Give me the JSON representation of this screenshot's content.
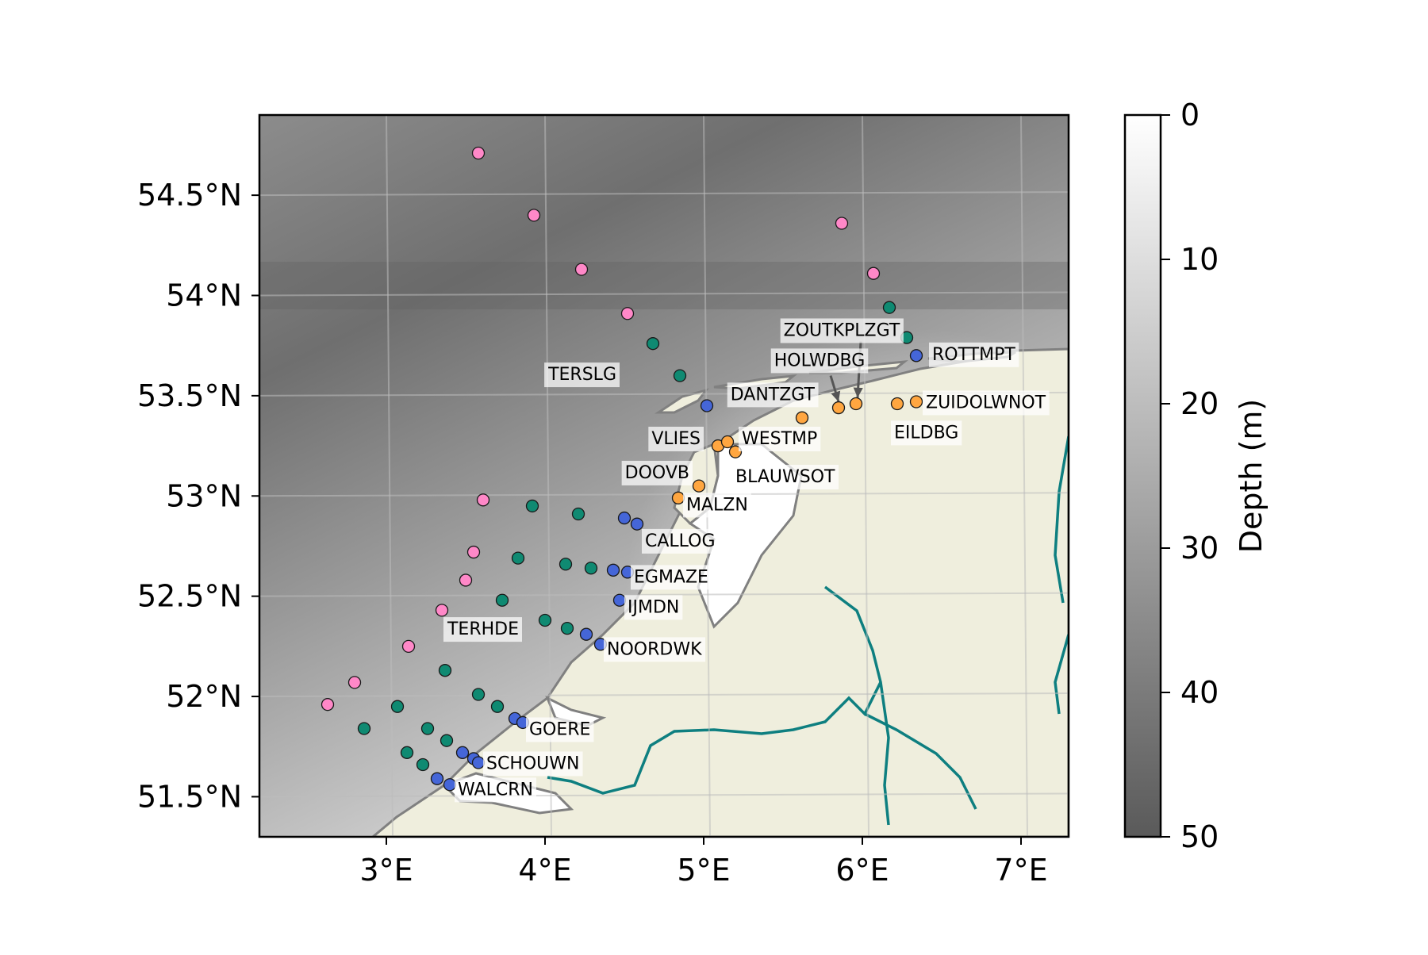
{
  "map": {
    "lon_range": [
      2.2,
      7.3
    ],
    "lat_range": [
      51.3,
      54.9
    ],
    "lon_ticks": [
      {
        "value": 3,
        "label": "3°E"
      },
      {
        "value": 4,
        "label": "4°E"
      },
      {
        "value": 5,
        "label": "5°E"
      },
      {
        "value": 6,
        "label": "6°E"
      },
      {
        "value": 7,
        "label": "7°E"
      }
    ],
    "lat_ticks": [
      {
        "value": 51.5,
        "label": "51.5°N"
      },
      {
        "value": 52,
        "label": "52°N"
      },
      {
        "value": 52.5,
        "label": "52.5°N"
      },
      {
        "value": 53,
        "label": "53°N"
      },
      {
        "value": 53.5,
        "label": "53.5°N"
      },
      {
        "value": 54,
        "label": "54°N"
      },
      {
        "value": 54.5,
        "label": "54.5°N"
      }
    ],
    "gridlines": true,
    "colors": {
      "land": "#efeedd",
      "coast": "#808080",
      "rivers": "#0e7f80",
      "pink_station": "#ff88c8",
      "green_station": "#0f8a72",
      "blue_station": "#4566d8",
      "orange_station": "#ffa640"
    }
  },
  "colorbar": {
    "label": "Depth (m)",
    "range": [
      0,
      50
    ],
    "ticks": [
      {
        "value": 0,
        "label": "0"
      },
      {
        "value": 10,
        "label": "10"
      },
      {
        "value": 20,
        "label": "20"
      },
      {
        "value": 30,
        "label": "30"
      },
      {
        "value": 40,
        "label": "40"
      },
      {
        "value": 50,
        "label": "50"
      }
    ],
    "colors": [
      "#ffffff",
      "#5a5a5a"
    ]
  },
  "stations": [
    {
      "lon": 3.58,
      "lat": 54.71,
      "group": "pink"
    },
    {
      "lon": 3.93,
      "lat": 54.4,
      "group": "pink"
    },
    {
      "lon": 4.23,
      "lat": 54.13,
      "group": "pink"
    },
    {
      "lon": 4.52,
      "lat": 53.91,
      "group": "pink"
    },
    {
      "lon": 5.87,
      "lat": 54.36,
      "group": "pink"
    },
    {
      "lon": 6.07,
      "lat": 54.11,
      "group": "pink"
    },
    {
      "lon": 3.61,
      "lat": 52.98,
      "group": "pink"
    },
    {
      "lon": 3.55,
      "lat": 52.72,
      "group": "pink"
    },
    {
      "lon": 3.5,
      "lat": 52.58,
      "group": "pink"
    },
    {
      "lon": 3.35,
      "lat": 52.43,
      "group": "pink"
    },
    {
      "lon": 3.14,
      "lat": 52.25,
      "group": "pink"
    },
    {
      "lon": 2.8,
      "lat": 52.07,
      "group": "pink"
    },
    {
      "lon": 2.63,
      "lat": 51.96,
      "group": "pink"
    },
    {
      "lon": 4.68,
      "lat": 53.76,
      "group": "green"
    },
    {
      "lon": 4.85,
      "lat": 53.6,
      "group": "green"
    },
    {
      "lon": 6.17,
      "lat": 53.94,
      "group": "green"
    },
    {
      "lon": 6.28,
      "lat": 53.79,
      "group": "green"
    },
    {
      "lon": 3.92,
      "lat": 52.95,
      "group": "green"
    },
    {
      "lon": 4.21,
      "lat": 52.91,
      "group": "green"
    },
    {
      "lon": 3.83,
      "lat": 52.69,
      "group": "green"
    },
    {
      "lon": 4.13,
      "lat": 52.66,
      "group": "green"
    },
    {
      "lon": 4.29,
      "lat": 52.64,
      "group": "green"
    },
    {
      "lon": 3.73,
      "lat": 52.48,
      "group": "green"
    },
    {
      "lon": 4.0,
      "lat": 52.38,
      "group": "green"
    },
    {
      "lon": 4.14,
      "lat": 52.34,
      "group": "green"
    },
    {
      "lon": 3.37,
      "lat": 52.13,
      "group": "green"
    },
    {
      "lon": 3.58,
      "lat": 52.01,
      "group": "green"
    },
    {
      "lon": 3.7,
      "lat": 51.95,
      "group": "green"
    },
    {
      "lon": 3.07,
      "lat": 51.95,
      "group": "green"
    },
    {
      "lon": 2.86,
      "lat": 51.84,
      "group": "green"
    },
    {
      "lon": 3.26,
      "lat": 51.84,
      "group": "green"
    },
    {
      "lon": 3.38,
      "lat": 51.78,
      "group": "green"
    },
    {
      "lon": 3.13,
      "lat": 51.72,
      "group": "green"
    },
    {
      "lon": 3.23,
      "lat": 51.66,
      "group": "green"
    },
    {
      "lon": 5.02,
      "lat": 53.45,
      "group": "blue"
    },
    {
      "lon": 6.34,
      "lat": 53.7,
      "group": "blue"
    },
    {
      "lon": 4.5,
      "lat": 52.89,
      "group": "blue"
    },
    {
      "lon": 4.58,
      "lat": 52.86,
      "group": "blue"
    },
    {
      "lon": 4.43,
      "lat": 52.63,
      "group": "blue"
    },
    {
      "lon": 4.52,
      "lat": 52.62,
      "group": "blue"
    },
    {
      "lon": 4.47,
      "lat": 52.48,
      "group": "blue"
    },
    {
      "lon": 4.26,
      "lat": 52.31,
      "group": "blue"
    },
    {
      "lon": 4.35,
      "lat": 52.26,
      "group": "blue"
    },
    {
      "lon": 3.81,
      "lat": 51.89,
      "group": "blue"
    },
    {
      "lon": 3.86,
      "lat": 51.87,
      "group": "blue"
    },
    {
      "lon": 3.48,
      "lat": 51.72,
      "group": "blue"
    },
    {
      "lon": 3.55,
      "lat": 51.69,
      "group": "blue"
    },
    {
      "lon": 3.58,
      "lat": 51.67,
      "group": "blue"
    },
    {
      "lon": 3.32,
      "lat": 51.59,
      "group": "blue"
    },
    {
      "lon": 3.4,
      "lat": 51.56,
      "group": "blue"
    },
    {
      "lon": 5.62,
      "lat": 53.39,
      "group": "orange"
    },
    {
      "lon": 5.85,
      "lat": 53.44,
      "group": "orange"
    },
    {
      "lon": 5.96,
      "lat": 53.46,
      "group": "orange"
    },
    {
      "lon": 6.22,
      "lat": 53.46,
      "group": "orange"
    },
    {
      "lon": 6.34,
      "lat": 53.47,
      "group": "orange"
    },
    {
      "lon": 5.09,
      "lat": 53.25,
      "group": "orange"
    },
    {
      "lon": 5.15,
      "lat": 53.27,
      "group": "orange"
    },
    {
      "lon": 5.2,
      "lat": 53.22,
      "group": "orange"
    },
    {
      "lon": 4.97,
      "lat": 53.05,
      "group": "orange"
    },
    {
      "lon": 4.84,
      "lat": 52.99,
      "group": "orange"
    }
  ],
  "labels": [
    {
      "text": "TERSLG",
      "lon": 4.45,
      "lat": 53.61,
      "anchor": "end"
    },
    {
      "text": "ZOUTKPLZGT",
      "lon": 5.87,
      "lat": 53.83,
      "anchor": "middle"
    },
    {
      "text": "HOLWDBG",
      "lon": 5.73,
      "lat": 53.68,
      "anchor": "middle"
    },
    {
      "text": "DANTZGT",
      "lon": 5.7,
      "lat": 53.51,
      "anchor": "end"
    },
    {
      "text": "ROTTMPT",
      "lon": 6.44,
      "lat": 53.71,
      "anchor": "start"
    },
    {
      "text": "ZUIDOLWNOT",
      "lon": 6.4,
      "lat": 53.47,
      "anchor": "start"
    },
    {
      "text": "EILDBG",
      "lon": 6.2,
      "lat": 53.32,
      "anchor": "start"
    },
    {
      "text": "VLIES",
      "lon": 4.98,
      "lat": 53.29,
      "anchor": "end"
    },
    {
      "text": "WESTMP",
      "lon": 5.24,
      "lat": 53.29,
      "anchor": "start"
    },
    {
      "text": "BLAUWSOT",
      "lon": 5.2,
      "lat": 53.1,
      "anchor": "start"
    },
    {
      "text": "DOOVB",
      "lon": 4.91,
      "lat": 53.12,
      "anchor": "end"
    },
    {
      "text": "MALZN",
      "lon": 4.89,
      "lat": 52.96,
      "anchor": "start"
    },
    {
      "text": "CALLOG",
      "lon": 4.63,
      "lat": 52.78,
      "anchor": "start"
    },
    {
      "text": "EGMAZE",
      "lon": 4.56,
      "lat": 52.6,
      "anchor": "start"
    },
    {
      "text": "IJMDN",
      "lon": 4.52,
      "lat": 52.45,
      "anchor": "start"
    },
    {
      "text": "TERHDE",
      "lon": 3.61,
      "lat": 52.34,
      "anchor": "middle"
    },
    {
      "text": "NOORDWK",
      "lon": 4.39,
      "lat": 52.24,
      "anchor": "start"
    },
    {
      "text": "GOERE",
      "lon": 3.9,
      "lat": 51.84,
      "anchor": "start"
    },
    {
      "text": "SCHOUWN",
      "lon": 3.63,
      "lat": 51.67,
      "anchor": "start"
    },
    {
      "text": "WALCRN",
      "lon": 3.45,
      "lat": 51.54,
      "anchor": "start"
    }
  ],
  "arrows": [
    {
      "from_lon": 5.8,
      "from_lat": 53.6,
      "to_lon": 5.85,
      "to_lat": 53.47
    },
    {
      "from_lon": 5.99,
      "from_lat": 53.77,
      "to_lon": 5.97,
      "to_lat": 53.49
    }
  ]
}
